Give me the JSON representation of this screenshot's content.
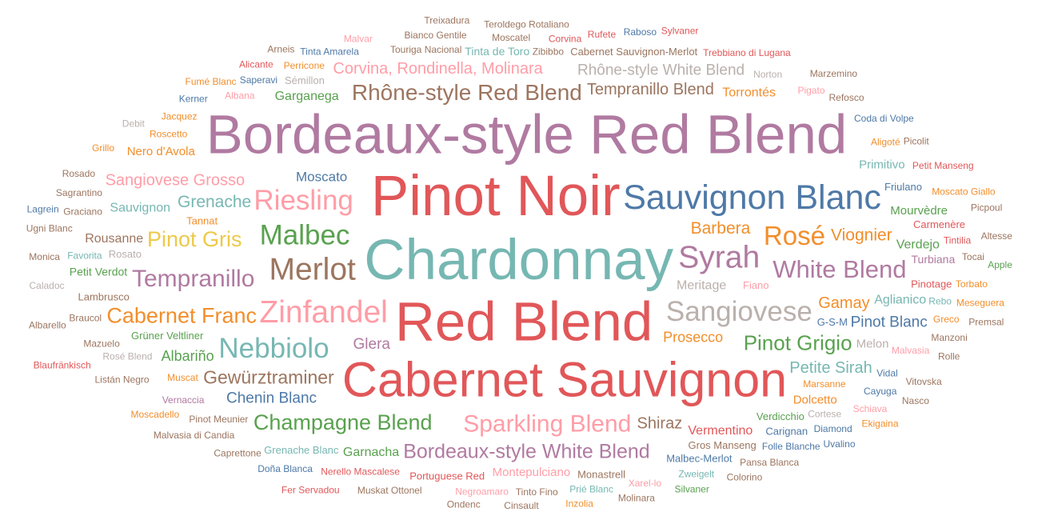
{
  "chart_data": {
    "type": "wordcloud",
    "title": "",
    "palette": [
      "#4e79a7",
      "#f28e2b",
      "#e15759",
      "#76b7b2",
      "#59a14f",
      "#edc948",
      "#b07aa1",
      "#ff9da7",
      "#9c755f",
      "#bab0ac"
    ],
    "words": [
      {
        "text": "Chardonnay",
        "weight": 1.0,
        "color": "#76b7b2"
      },
      {
        "text": "Red Blend",
        "weight": 0.97,
        "color": "#e15759"
      },
      {
        "text": "Bordeaux-style Red Blend",
        "weight": 0.97,
        "color": "#b07aa1"
      },
      {
        "text": "Pinot Noir",
        "weight": 1.0,
        "color": "#e15759"
      },
      {
        "text": "Cabernet Sauvignon",
        "weight": 0.88,
        "color": "#e15759"
      },
      {
        "text": "Sauvignon Blanc",
        "weight": 0.64,
        "color": "#4e79a7"
      },
      {
        "text": "Zinfandel",
        "weight": 0.58,
        "color": "#ff9da7"
      },
      {
        "text": "Merlot",
        "weight": 0.58,
        "color": "#9c755f"
      },
      {
        "text": "Syrah",
        "weight": 0.58,
        "color": "#b07aa1"
      },
      {
        "text": "Sangiovese",
        "weight": 0.52,
        "color": "#bab0ac"
      },
      {
        "text": "Malbec",
        "weight": 0.52,
        "color": "#59a14f"
      },
      {
        "text": "Riesling",
        "weight": 0.52,
        "color": "#ff9da7"
      },
      {
        "text": "Nebbiolo",
        "weight": 0.52,
        "color": "#76b7b2"
      },
      {
        "text": "Rosé",
        "weight": 0.5,
        "color": "#f28e2b"
      },
      {
        "text": "White Blend",
        "weight": 0.47,
        "color": "#b07aa1"
      },
      {
        "text": "Sparkling Blend",
        "weight": 0.45,
        "color": "#ff9da7"
      },
      {
        "text": "Rhône-style Red Blend",
        "weight": 0.42,
        "color": "#9c755f"
      },
      {
        "text": "Tempranillo",
        "weight": 0.45,
        "color": "#b07aa1"
      },
      {
        "text": "Pinot Gris",
        "weight": 0.4,
        "color": "#edc948"
      },
      {
        "text": "Champagne Blend",
        "weight": 0.4,
        "color": "#59a14f"
      },
      {
        "text": "Cabernet Franc",
        "weight": 0.4,
        "color": "#f28e2b"
      },
      {
        "text": "Pinot Grigio",
        "weight": 0.38,
        "color": "#59a14f"
      },
      {
        "text": "Bordeaux-style White Blend",
        "weight": 0.36,
        "color": "#b07aa1"
      },
      {
        "text": "Gewürztraminer",
        "weight": 0.34,
        "color": "#9c755f"
      },
      {
        "text": "Barbera",
        "weight": 0.3,
        "color": "#f28e2b"
      },
      {
        "text": "Grenache",
        "weight": 0.3,
        "color": "#76b7b2"
      },
      {
        "text": "Viognier",
        "weight": 0.3,
        "color": "#f28e2b"
      },
      {
        "text": "Corvina, Rondinella, Molinara",
        "weight": 0.28,
        "color": "#ff9da7"
      },
      {
        "text": "Tempranillo Blend",
        "weight": 0.28,
        "color": "#9c755f"
      },
      {
        "text": "Gamay",
        "weight": 0.28,
        "color": "#f28e2b"
      },
      {
        "text": "Shiraz",
        "weight": 0.28,
        "color": "#9c755f"
      },
      {
        "text": "Petite Sirah",
        "weight": 0.27,
        "color": "#76b7b2"
      },
      {
        "text": "Sangiovese Grosso",
        "weight": 0.27,
        "color": "#ff9da7"
      },
      {
        "text": "Chenin Blanc",
        "weight": 0.26,
        "color": "#4e79a7"
      },
      {
        "text": "Pinot Blanc",
        "weight": 0.26,
        "color": "#4e79a7"
      },
      {
        "text": "Rhône-style White Blend",
        "weight": 0.25,
        "color": "#bab0ac"
      },
      {
        "text": "Glera",
        "weight": 0.25,
        "color": "#b07aa1"
      },
      {
        "text": "Prosecco",
        "weight": 0.24,
        "color": "#f28e2b"
      },
      {
        "text": "Albariño",
        "weight": 0.24,
        "color": "#59a14f"
      },
      {
        "text": "Moscato",
        "weight": 0.22,
        "color": "#4e79a7"
      },
      {
        "text": "Meritage",
        "weight": 0.2,
        "color": "#bab0ac"
      },
      {
        "text": "Vermentino",
        "weight": 0.2,
        "color": "#e15759"
      },
      {
        "text": "Aglianico",
        "weight": 0.2,
        "color": "#76b7b2"
      },
      {
        "text": "Garganega",
        "weight": 0.19,
        "color": "#59a14f"
      },
      {
        "text": "Garnacha",
        "weight": 0.19,
        "color": "#59a14f"
      },
      {
        "text": "Sauvignon",
        "weight": 0.2,
        "color": "#76b7b2"
      },
      {
        "text": "Rousanne",
        "weight": 0.19,
        "color": "#9c755f"
      },
      {
        "text": "Torrontés",
        "weight": 0.19,
        "color": "#f28e2b"
      },
      {
        "text": "Verdejo",
        "weight": 0.19,
        "color": "#59a14f"
      },
      {
        "text": "Dolcetto",
        "weight": 0.18,
        "color": "#f28e2b"
      },
      {
        "text": "Montepulciano",
        "weight": 0.18,
        "color": "#ff9da7"
      },
      {
        "text": "Primitivo",
        "weight": 0.18,
        "color": "#76b7b2"
      },
      {
        "text": "Mourvèdre",
        "weight": 0.18,
        "color": "#59a14f"
      },
      {
        "text": "Melon",
        "weight": 0.18,
        "color": "#bab0ac"
      },
      {
        "text": "Nero d'Avola",
        "weight": 0.18,
        "color": "#f28e2b"
      },
      {
        "text": "Turbiana",
        "weight": 0.16,
        "color": "#b07aa1"
      },
      {
        "text": "Tinta de Toro",
        "weight": 0.16,
        "color": "#76b7b2"
      },
      {
        "text": "Petit Verdot",
        "weight": 0.16,
        "color": "#59a14f"
      },
      {
        "text": "Gros Manseng",
        "weight": 0.12,
        "color": "#9c755f"
      },
      {
        "text": "Pinotage",
        "weight": 0.12,
        "color": "#e15759"
      },
      {
        "text": "Grüner Veltliner",
        "weight": 0.14,
        "color": "#59a14f"
      },
      {
        "text": "Carmenère",
        "weight": 0.12,
        "color": "#e15759"
      },
      {
        "text": "Tannat",
        "weight": 0.14,
        "color": "#f28e2b"
      },
      {
        "text": "Malbec-Merlot",
        "weight": 0.12,
        "color": "#4e79a7"
      },
      {
        "text": "Cabernet Sauvignon-Merlot",
        "weight": 0.12,
        "color": "#9c755f"
      },
      {
        "text": "Rosato",
        "weight": 0.14,
        "color": "#bab0ac"
      },
      {
        "text": "Lambrusco",
        "weight": 0.12,
        "color": "#9c755f"
      },
      {
        "text": "Portuguese Red",
        "weight": 0.12,
        "color": "#e15759"
      },
      {
        "text": "Sémillon",
        "weight": 0.12,
        "color": "#bab0ac"
      },
      {
        "text": "Fiano",
        "weight": 0.12,
        "color": "#ff9da7"
      },
      {
        "text": "Carignan",
        "weight": 0.12,
        "color": "#4e79a7"
      },
      {
        "text": "Marsanne",
        "weight": 0.11,
        "color": "#f28e2b"
      },
      {
        "text": "Pinot Meunier",
        "weight": 0.11,
        "color": "#9c755f"
      },
      {
        "text": "Vernaccia",
        "weight": 0.11,
        "color": "#b07aa1"
      },
      {
        "text": "Muscat",
        "weight": 0.11,
        "color": "#f28e2b"
      },
      {
        "text": "Verdicchio",
        "weight": 0.14,
        "color": "#59a14f"
      },
      {
        "text": "Grenache Blanc",
        "weight": 0.12,
        "color": "#76b7b2"
      },
      {
        "text": "Friulano",
        "weight": 0.12,
        "color": "#4e79a7"
      },
      {
        "text": "Nerello Mascalese",
        "weight": 0.11,
        "color": "#e15759"
      },
      {
        "text": "Touriga Nacional",
        "weight": 0.11,
        "color": "#9c755f"
      },
      {
        "text": "Malvasia",
        "weight": 0.11,
        "color": "#ff9da7"
      },
      {
        "text": "Zibibbo",
        "weight": 0.1,
        "color": "#9c755f"
      },
      {
        "text": "Cortese",
        "weight": 0.1,
        "color": "#bab0ac"
      },
      {
        "text": "Favorita",
        "weight": 0.1,
        "color": "#76b7b2"
      },
      {
        "text": "Roscetto",
        "weight": 0.1,
        "color": "#f28e2b"
      },
      {
        "text": "Albana",
        "weight": 0.1,
        "color": "#ff9da7"
      },
      {
        "text": "Aligoté",
        "weight": 0.1,
        "color": "#f28e2b"
      },
      {
        "text": "Rebo",
        "weight": 0.1,
        "color": "#76b7b2"
      },
      {
        "text": "Vidal",
        "weight": 0.1,
        "color": "#4e79a7"
      },
      {
        "text": "Cayuga",
        "weight": 0.1,
        "color": "#4e79a7"
      },
      {
        "text": "Mazuelo",
        "weight": 0.1,
        "color": "#9c755f"
      },
      {
        "text": "Graciano",
        "weight": 0.1,
        "color": "#9c755f"
      },
      {
        "text": "Tintilia",
        "weight": 0.1,
        "color": "#e15759"
      },
      {
        "text": "Greco",
        "weight": 0.1,
        "color": "#f28e2b"
      },
      {
        "text": "Braucol",
        "weight": 0.1,
        "color": "#9c755f"
      },
      {
        "text": "Jacquez",
        "weight": 0.1,
        "color": "#f28e2b"
      },
      {
        "text": "Saperavi",
        "weight": 0.1,
        "color": "#4e79a7"
      },
      {
        "text": "Perricone",
        "weight": 0.1,
        "color": "#f28e2b"
      },
      {
        "text": "Moscatel",
        "weight": 0.1,
        "color": "#9c755f"
      },
      {
        "text": "Corvina",
        "weight": 0.1,
        "color": "#e15759"
      },
      {
        "text": "Norton",
        "weight": 0.1,
        "color": "#bab0ac"
      },
      {
        "text": "Pigato",
        "weight": 0.1,
        "color": "#ff9da7"
      },
      {
        "text": "Torbato",
        "weight": 0.1,
        "color": "#f28e2b"
      },
      {
        "text": "Manzoni",
        "weight": 0.1,
        "color": "#9c755f"
      },
      {
        "text": "Schiava",
        "weight": 0.1,
        "color": "#ff9da7"
      },
      {
        "text": "Diamond",
        "weight": 0.1,
        "color": "#4e79a7"
      },
      {
        "text": "Folle Blanche",
        "weight": 0.1,
        "color": "#4e79a7"
      },
      {
        "text": "Zweigelt",
        "weight": 0.1,
        "color": "#76b7b2"
      },
      {
        "text": "Xarel-lo",
        "weight": 0.1,
        "color": "#ff9da7"
      },
      {
        "text": "Prié Blanc",
        "weight": 0.1,
        "color": "#76b7b2"
      },
      {
        "text": "Tinto Fino",
        "weight": 0.1,
        "color": "#9c755f"
      },
      {
        "text": "G-S-M",
        "weight": 0.12,
        "color": "#4e79a7"
      },
      {
        "text": "Negroamaro",
        "weight": 0.1,
        "color": "#ff9da7"
      },
      {
        "text": "Listán Negro",
        "weight": 0.1,
        "color": "#9c755f"
      },
      {
        "text": "Sagrantino",
        "weight": 0.1,
        "color": "#9c755f"
      },
      {
        "text": "Tinta Amarela",
        "weight": 0.1,
        "color": "#4e79a7"
      },
      {
        "text": "Bianco Gentile",
        "weight": 0.1,
        "color": "#9c755f"
      },
      {
        "text": "Coda di Volpe",
        "weight": 0.1,
        "color": "#4e79a7"
      },
      {
        "text": "Petit Manseng",
        "weight": 0.1,
        "color": "#e15759"
      },
      {
        "text": "Moscato Giallo",
        "weight": 0.1,
        "color": "#f28e2b"
      },
      {
        "text": "Pansa Blanca",
        "weight": 0.1,
        "color": "#9c755f"
      },
      {
        "text": "Muskat Ottonel",
        "weight": 0.1,
        "color": "#9c755f"
      },
      {
        "text": "Malvasia di Candia",
        "weight": 0.1,
        "color": "#9c755f"
      },
      {
        "text": "Tocai",
        "weight": 0.1,
        "color": "#9c755f"
      },
      {
        "text": "Kerner",
        "weight": 0.1,
        "color": "#4e79a7"
      },
      {
        "text": "Rufete",
        "weight": 0.1,
        "color": "#e15759"
      },
      {
        "text": "Doña Blanca",
        "weight": 0.1,
        "color": "#4e79a7"
      },
      {
        "text": "Teroldego Rotaliano",
        "weight": 0.1,
        "color": "#9c755f"
      },
      {
        "text": "Trebbiano di Lugana",
        "weight": 0.1,
        "color": "#e15759"
      },
      {
        "text": "Refosco",
        "weight": 0.1,
        "color": "#9c755f"
      },
      {
        "text": "Meseguera",
        "weight": 0.1,
        "color": "#f28e2b"
      },
      {
        "text": "Caprettone",
        "weight": 0.1,
        "color": "#9c755f"
      },
      {
        "text": "Picolit",
        "weight": 0.1,
        "color": "#9c755f"
      },
      {
        "text": "Moscadello",
        "weight": 0.1,
        "color": "#f28e2b"
      },
      {
        "text": "Rolle",
        "weight": 0.1,
        "color": "#9c755f"
      },
      {
        "text": "Vitovska",
        "weight": 0.1,
        "color": "#9c755f"
      },
      {
        "text": "Caladoc",
        "weight": 0.1,
        "color": "#bab0ac"
      },
      {
        "text": "Ugni Blanc",
        "weight": 0.1,
        "color": "#9c755f"
      },
      {
        "text": "Fumé Blanc",
        "weight": 0.1,
        "color": "#f28e2b"
      },
      {
        "text": "Monica",
        "weight": 0.1,
        "color": "#9c755f"
      },
      {
        "text": "Rosado",
        "weight": 0.1,
        "color": "#9c755f"
      },
      {
        "text": "Grillo",
        "weight": 0.1,
        "color": "#f28e2b"
      },
      {
        "text": "Alicante",
        "weight": 0.1,
        "color": "#e15759"
      },
      {
        "text": "Malvar",
        "weight": 0.1,
        "color": "#ff9da7"
      },
      {
        "text": "Raboso",
        "weight": 0.1,
        "color": "#4e79a7"
      },
      {
        "text": "Debit",
        "weight": 0.1,
        "color": "#bab0ac"
      },
      {
        "text": "Picpoul",
        "weight": 0.1,
        "color": "#9c755f"
      },
      {
        "text": "Altesse",
        "weight": 0.1,
        "color": "#9c755f"
      },
      {
        "text": "Premsal",
        "weight": 0.1,
        "color": "#9c755f"
      },
      {
        "text": "Nasco",
        "weight": 0.1,
        "color": "#9c755f"
      },
      {
        "text": "Ekigaina",
        "weight": 0.1,
        "color": "#f28e2b"
      },
      {
        "text": "Colorino",
        "weight": 0.1,
        "color": "#9c755f"
      },
      {
        "text": "Silvaner",
        "weight": 0.1,
        "color": "#59a14f"
      },
      {
        "text": "Uvalino",
        "weight": 0.1,
        "color": "#4e79a7"
      },
      {
        "text": "Molinara",
        "weight": 0.1,
        "color": "#9c755f"
      },
      {
        "text": "Inzolia",
        "weight": 0.1,
        "color": "#f28e2b"
      },
      {
        "text": "Cinsault",
        "weight": 0.1,
        "color": "#9c755f"
      },
      {
        "text": "Ondenc",
        "weight": 0.1,
        "color": "#9c755f"
      },
      {
        "text": "Treixadura",
        "weight": 0.1,
        "color": "#9c755f"
      },
      {
        "text": "Albarello",
        "weight": 0.1,
        "color": "#9c755f"
      },
      {
        "text": "Sylvaner",
        "weight": 0.1,
        "color": "#e15759"
      },
      {
        "text": "Marzemino",
        "weight": 0.1,
        "color": "#9c755f"
      },
      {
        "text": "Monastrell",
        "weight": 0.12,
        "color": "#9c755f"
      },
      {
        "text": "Rosé Blend",
        "weight": 0.11,
        "color": "#bab0ac"
      },
      {
        "text": "Fer Servadou",
        "weight": 0.1,
        "color": "#e15759"
      },
      {
        "text": "Blaufränkisch",
        "weight": 0.1,
        "color": "#e15759"
      },
      {
        "text": "Lagrein",
        "weight": 0.1,
        "color": "#4e79a7"
      },
      {
        "text": "Arneis",
        "weight": 0.1,
        "color": "#9c755f"
      },
      {
        "text": "Apple",
        "weight": 0.1,
        "color": "#59a14f"
      }
    ]
  }
}
